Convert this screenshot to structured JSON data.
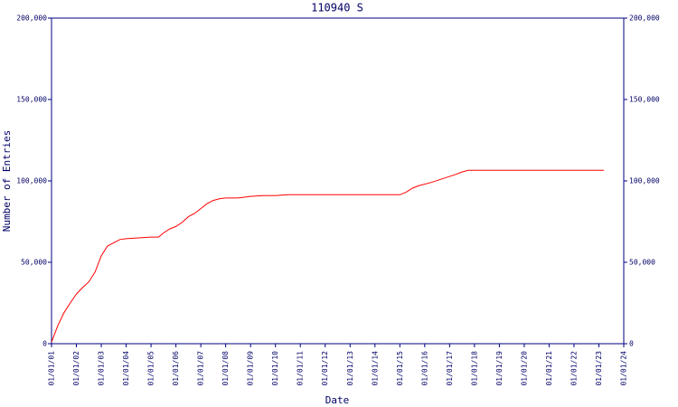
{
  "chart_data": {
    "type": "line",
    "title": "110940 S",
    "x_label": "Date",
    "y_label": "Number of Entries",
    "x": [
      2001.0,
      2001.25,
      2001.5,
      2001.75,
      2002.0,
      2002.25,
      2002.5,
      2002.75,
      2003.0,
      2003.25,
      2003.5,
      2003.75,
      2004.0,
      2004.5,
      2005.0,
      2005.3,
      2005.5,
      2005.75,
      2006.0,
      2006.25,
      2006.5,
      2006.75,
      2007.0,
      2007.25,
      2007.5,
      2007.75,
      2008.0,
      2008.5,
      2009.0,
      2009.5,
      2010.0,
      2010.5,
      2015.0,
      2015.25,
      2015.5,
      2015.75,
      2016.25,
      2016.75,
      2017.25,
      2017.5,
      2017.75,
      2023.2
    ],
    "series": [
      {
        "name": "Entries",
        "color": "#ff0000",
        "values": [
          1000,
          11000,
          19000,
          25000,
          30500,
          34500,
          38000,
          44000,
          54000,
          60000,
          62000,
          64000,
          64500,
          65000,
          65500,
          65500,
          68000,
          70500,
          72000,
          74500,
          78000,
          80000,
          83000,
          86000,
          88000,
          89000,
          89500,
          89500,
          90500,
          91000,
          91000,
          91500,
          91500,
          93000,
          95500,
          97000,
          99000,
          101500,
          104000,
          105500,
          106500,
          106500
        ]
      }
    ],
    "xlim": [
      2001,
      2024
    ],
    "xticks": [
      {
        "value": 2001,
        "label": "01/01/01"
      },
      {
        "value": 2002,
        "label": "01/01/02"
      },
      {
        "value": 2003,
        "label": "01/01/03"
      },
      {
        "value": 2004,
        "label": "01/01/04"
      },
      {
        "value": 2005,
        "label": "01/01/05"
      },
      {
        "value": 2006,
        "label": "01/01/06"
      },
      {
        "value": 2007,
        "label": "01/01/07"
      },
      {
        "value": 2008,
        "label": "01/01/08"
      },
      {
        "value": 2009,
        "label": "01/01/09"
      },
      {
        "value": 2010,
        "label": "01/01/10"
      },
      {
        "value": 2011,
        "label": "01/01/11"
      },
      {
        "value": 2012,
        "label": "01/01/12"
      },
      {
        "value": 2013,
        "label": "01/01/13"
      },
      {
        "value": 2014,
        "label": "01/01/14"
      },
      {
        "value": 2015,
        "label": "01/01/15"
      },
      {
        "value": 2016,
        "label": "01/01/16"
      },
      {
        "value": 2017,
        "label": "01/01/17"
      },
      {
        "value": 2018,
        "label": "01/01/18"
      },
      {
        "value": 2019,
        "label": "01/01/19"
      },
      {
        "value": 2020,
        "label": "01/01/20"
      },
      {
        "value": 2021,
        "label": "01/01/21"
      },
      {
        "value": 2022,
        "label": "01/01/22"
      },
      {
        "value": 2023,
        "label": "01/01/23"
      },
      {
        "value": 2024,
        "label": "01/01/24"
      }
    ],
    "ylim": [
      0,
      200000
    ],
    "yticks": [
      0,
      {
        "value": 50000,
        "label": "50,000"
      },
      {
        "value": 100000,
        "label": "100,000"
      },
      {
        "value": 150000,
        "label": "150,000"
      },
      {
        "value": 200000,
        "label": "200,000"
      }
    ],
    "axis_color": "#000080",
    "grid": false
  }
}
